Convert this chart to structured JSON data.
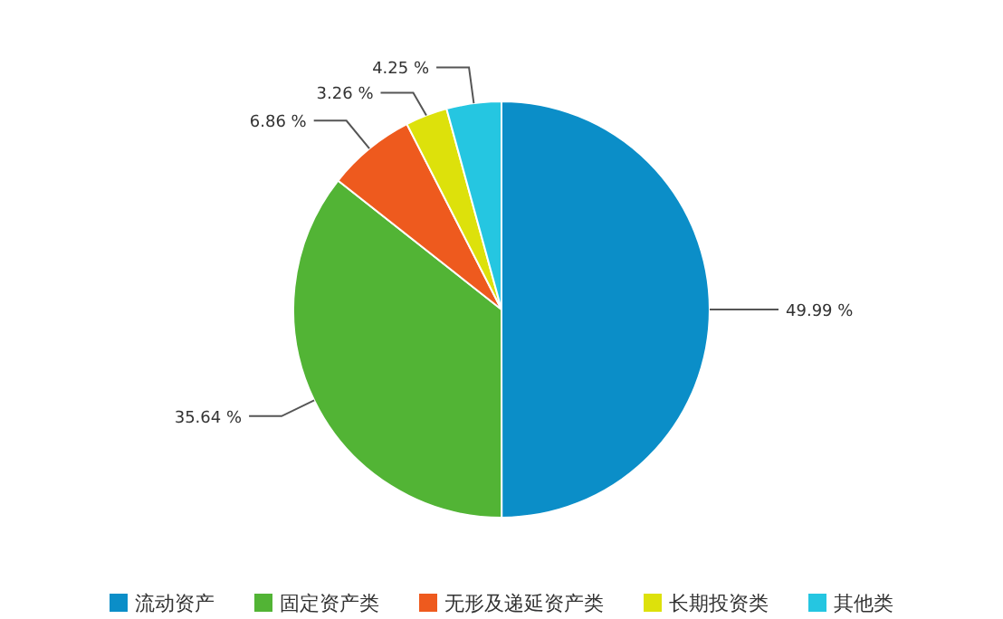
{
  "chart_data": {
    "type": "pie",
    "categories": [
      "流动资产",
      "固定资产类",
      "无形及递延资产类",
      "长期投资类",
      "其他类"
    ],
    "values": [
      49.99,
      35.64,
      6.86,
      3.26,
      4.25
    ],
    "colors": [
      "#0b8ec8",
      "#52b435",
      "#ee5a1e",
      "#dde10b",
      "#25c6e1"
    ],
    "value_labels": [
      "49.99 %",
      "35.64 %",
      "6.86 %",
      "3.26 %",
      "4.25 %"
    ],
    "legend": "bottom"
  }
}
